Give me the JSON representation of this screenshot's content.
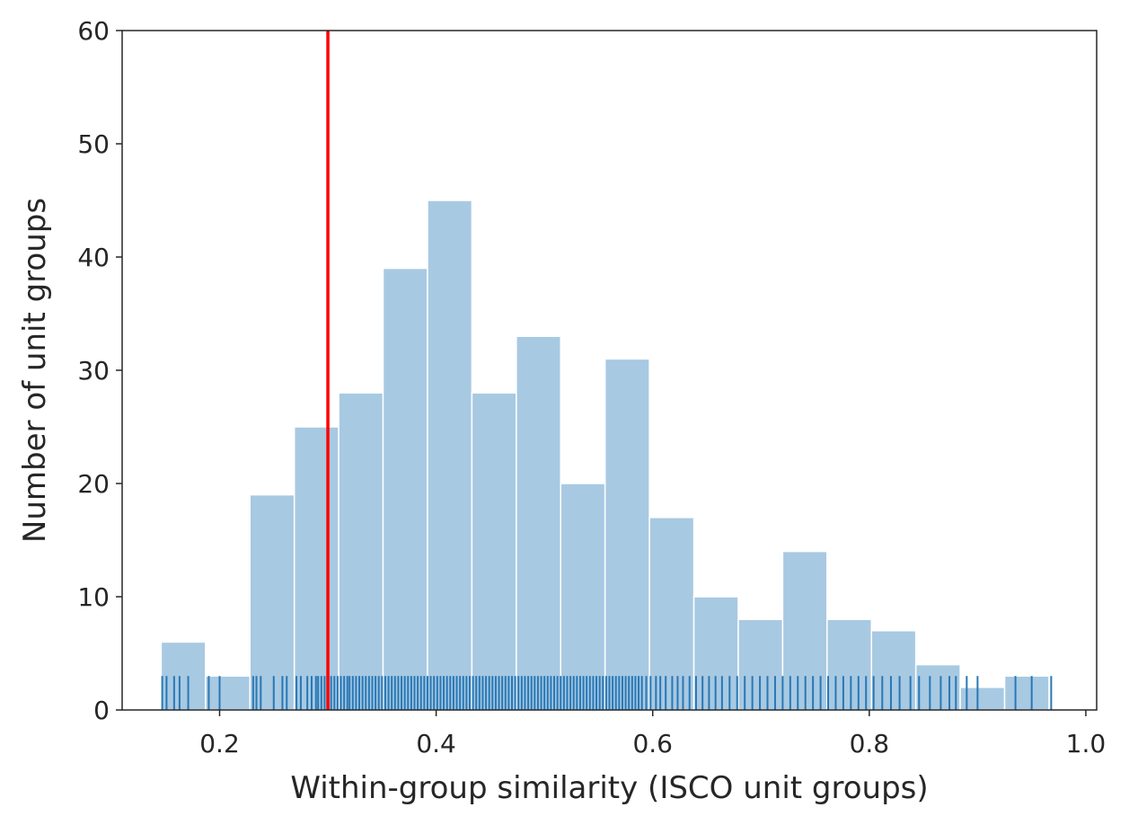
{
  "chart_data": {
    "type": "bar",
    "xlabel": "Within-group similarity (ISCO unit groups)",
    "ylabel": "Number of unit groups",
    "xlim": [
      0.11,
      1.01
    ],
    "ylim": [
      0,
      60
    ],
    "xticks": [
      "0.2",
      "0.4",
      "0.6",
      "0.8",
      "1.0"
    ],
    "xtick_values": [
      0.2,
      0.4,
      0.6,
      0.8,
      1.0
    ],
    "yticks": [
      "0",
      "10",
      "20",
      "30",
      "40",
      "50",
      "60"
    ],
    "ytick_values": [
      0,
      10,
      20,
      30,
      40,
      50,
      60
    ],
    "grid": false,
    "bin_edges": [
      0.146,
      0.187,
      0.228,
      0.269,
      0.31,
      0.351,
      0.392,
      0.433,
      0.474,
      0.515,
      0.556,
      0.597,
      0.638,
      0.679,
      0.72,
      0.761,
      0.802,
      0.843,
      0.884,
      0.925,
      0.966
    ],
    "counts": [
      6,
      3,
      19,
      25,
      28,
      39,
      45,
      28,
      33,
      20,
      31,
      17,
      10,
      8,
      14,
      8,
      7,
      4,
      2,
      3
    ],
    "bar_color": "#a8c9e2",
    "rug_color": "#2878b6",
    "rug_values": [
      0.147,
      0.151,
      0.158,
      0.163,
      0.171,
      0.19,
      0.2,
      0.231,
      0.234,
      0.238,
      0.25,
      0.258,
      0.262,
      0.271,
      0.275,
      0.281,
      0.285,
      0.289,
      0.291,
      0.294,
      0.297,
      0.3,
      0.303,
      0.306,
      0.309,
      0.312,
      0.315,
      0.318,
      0.32,
      0.323,
      0.326,
      0.329,
      0.332,
      0.335,
      0.338,
      0.341,
      0.344,
      0.347,
      0.35,
      0.353,
      0.356,
      0.359,
      0.362,
      0.365,
      0.368,
      0.371,
      0.374,
      0.377,
      0.38,
      0.383,
      0.386,
      0.389,
      0.392,
      0.395,
      0.398,
      0.401,
      0.404,
      0.407,
      0.41,
      0.413,
      0.416,
      0.419,
      0.422,
      0.425,
      0.428,
      0.431,
      0.434,
      0.437,
      0.44,
      0.443,
      0.446,
      0.449,
      0.452,
      0.455,
      0.458,
      0.461,
      0.464,
      0.467,
      0.47,
      0.473,
      0.476,
      0.479,
      0.482,
      0.485,
      0.488,
      0.491,
      0.494,
      0.497,
      0.5,
      0.503,
      0.506,
      0.509,
      0.512,
      0.515,
      0.518,
      0.521,
      0.524,
      0.527,
      0.53,
      0.533,
      0.536,
      0.539,
      0.542,
      0.545,
      0.548,
      0.551,
      0.554,
      0.557,
      0.56,
      0.563,
      0.566,
      0.569,
      0.572,
      0.575,
      0.578,
      0.581,
      0.584,
      0.587,
      0.59,
      0.594,
      0.598,
      0.603,
      0.607,
      0.612,
      0.618,
      0.623,
      0.628,
      0.634,
      0.64,
      0.646,
      0.652,
      0.658,
      0.664,
      0.671,
      0.678,
      0.685,
      0.692,
      0.699,
      0.706,
      0.713,
      0.72,
      0.727,
      0.734,
      0.741,
      0.748,
      0.755,
      0.762,
      0.769,
      0.776,
      0.783,
      0.79,
      0.797,
      0.804,
      0.812,
      0.82,
      0.828,
      0.838,
      0.846,
      0.856,
      0.866,
      0.874,
      0.88,
      0.89,
      0.9,
      0.935,
      0.95,
      0.968
    ],
    "threshold": 0.3,
    "threshold_color": "#ff0000"
  }
}
